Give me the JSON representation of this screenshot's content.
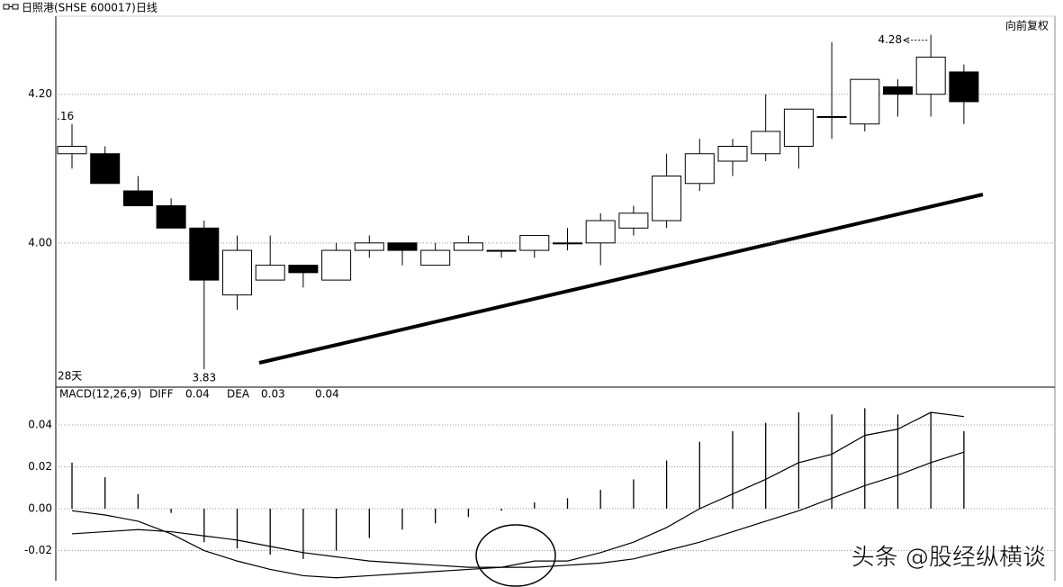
{
  "chart_data": [
    {
      "type": "candlestick",
      "title": "日照港(SHSE 600017)日线",
      "adjustment": "向前复权",
      "open": [
        4.12,
        4.12,
        4.07,
        4.05,
        4.02,
        3.93,
        3.95,
        3.97,
        3.95,
        3.99,
        4.0,
        3.97,
        3.99,
        3.99,
        3.99,
        4.0,
        4.0,
        4.02,
        4.03,
        4.08,
        4.11,
        4.12,
        4.13,
        4.17,
        4.16,
        4.21,
        4.2,
        4.23
      ],
      "high": [
        4.16,
        4.13,
        4.09,
        4.06,
        4.03,
        4.01,
        4.01,
        3.97,
        4.0,
        4.01,
        4.0,
        4.0,
        4.01,
        3.99,
        4.01,
        4.02,
        4.04,
        4.05,
        4.12,
        4.14,
        4.14,
        4.2,
        4.18,
        4.27,
        4.22,
        4.22,
        4.28,
        4.24
      ],
      "low": [
        4.1,
        4.08,
        4.05,
        4.02,
        3.83,
        3.91,
        3.95,
        3.94,
        3.95,
        3.98,
        3.97,
        3.97,
        3.99,
        3.98,
        3.98,
        3.99,
        3.97,
        4.01,
        4.02,
        4.07,
        4.09,
        4.11,
        4.1,
        4.14,
        4.15,
        4.17,
        4.17,
        4.16
      ],
      "close": [
        4.13,
        4.08,
        4.05,
        4.02,
        3.95,
        3.99,
        3.97,
        3.96,
        3.99,
        4.0,
        3.99,
        3.99,
        4.0,
        3.99,
        4.01,
        4.0,
        4.03,
        4.04,
        4.09,
        4.12,
        4.13,
        4.15,
        4.18,
        4.17,
        4.22,
        4.2,
        4.25,
        4.19
      ],
      "up_color": "#ffffff",
      "down_color": "#000000",
      "ylim": [
        3.806,
        4.305
      ],
      "yticks": [
        {
          "value": 4.2,
          "label": "4.20"
        },
        {
          "value": 4,
          "label": "4.00"
        }
      ],
      "grid": true,
      "first_high_label": ".16",
      "min_low_label": "3.83",
      "max_high_label": "4.28",
      "period_label": "28天"
    },
    {
      "type": "macd",
      "title": "MACD(12,26,9)",
      "series": [
        {
          "name": "DIFF",
          "color": "#000000",
          "value_label": "0.04",
          "values": [
            -0.001,
            -0.003,
            -0.006,
            -0.012,
            -0.02,
            -0.025,
            -0.029,
            -0.032,
            -0.033,
            -0.032,
            -0.031,
            -0.03,
            -0.029,
            -0.028,
            -0.025,
            -0.025,
            -0.021,
            -0.016,
            -0.009,
            0.0,
            0.007,
            0.014,
            0.022,
            0.026,
            0.035,
            0.038,
            0.046,
            0.044
          ]
        },
        {
          "name": "DEA",
          "color": "#000000",
          "value_label": "0.03",
          "values": [
            -0.012,
            -0.011,
            -0.01,
            -0.011,
            -0.013,
            -0.015,
            -0.018,
            -0.021,
            -0.023,
            -0.025,
            -0.026,
            -0.027,
            -0.028,
            -0.028,
            -0.028,
            -0.027,
            -0.026,
            -0.024,
            -0.02,
            -0.016,
            -0.011,
            -0.006,
            -0.001,
            0.005,
            0.011,
            0.016,
            0.022,
            0.027
          ]
        },
        {
          "color": "#000000",
          "value_label": "0.04",
          "values": [
            0.022,
            0.015,
            0.007,
            -0.002,
            -0.016,
            -0.019,
            -0.022,
            -0.024,
            -0.02,
            -0.014,
            -0.01,
            -0.007,
            -0.004,
            -0.001,
            0.003,
            0.005,
            0.009,
            0.014,
            0.023,
            0.032,
            0.037,
            0.041,
            0.046,
            0.045,
            0.048,
            0.045,
            0.046,
            0.037
          ]
        }
      ],
      "ylim": [
        -0.0344,
        0.0572
      ],
      "yticks": [
        0.04,
        0.02,
        {
          "value": 0,
          "label": "0.00"
        },
        -0.02
      ],
      "grid": true
    }
  ],
  "watermark": "头条 @股经纵横谈"
}
